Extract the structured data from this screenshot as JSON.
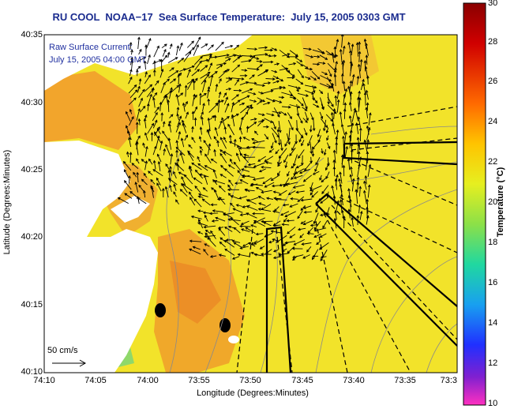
{
  "title": "RU COOL  NOAA−17  Sea Surface Temperature:  July 15, 2005 0303 GMT",
  "overlay": {
    "line1": "Raw Surface Current:",
    "line2": "July 15, 2005 04:00 GMT",
    "scale_label": "50 cm/s"
  },
  "axes": {
    "xlabel": "Longitude (Degrees:Minutes)",
    "ylabel": "Latitude (Degrees:Minutes)",
    "xticks": [
      "74:10",
      "74:05",
      "74:00",
      "73:55",
      "73:50",
      "73:45",
      "73:40",
      "73:35",
      "73:3"
    ],
    "yticks": [
      "40:35",
      "40:30",
      "40:25",
      "40:20",
      "40:15",
      "40:10"
    ]
  },
  "colorbar": {
    "label": "Temperature (°C)",
    "ticks": [
      "30",
      "28",
      "26",
      "24",
      "22",
      "20",
      "18",
      "16",
      "14",
      "12",
      "10"
    ]
  },
  "colors": {
    "land": "#ffffff",
    "sea_base": "#f2e32a",
    "warm": "#f0a02a",
    "title": "#1b2c8f"
  }
}
